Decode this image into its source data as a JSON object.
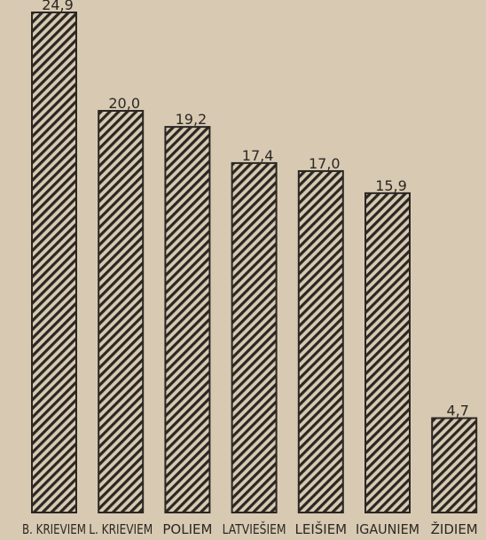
{
  "chart_data": {
    "type": "bar",
    "categories": [
      "B. KRIEVIEM",
      "L. KRIEVIEM",
      "POLIEM",
      "LATVIEŠIEM",
      "LEIŠIEM",
      "IGAUNIEM",
      "ŽIDIEM"
    ],
    "values": [
      24.9,
      20.0,
      19.2,
      17.4,
      17.0,
      15.9,
      4.7
    ],
    "value_labels": [
      "24,9",
      "20,0",
      "19,2",
      "17,4",
      "17,0",
      "15,9",
      "4,7"
    ],
    "color": "#2b2723"
  }
}
